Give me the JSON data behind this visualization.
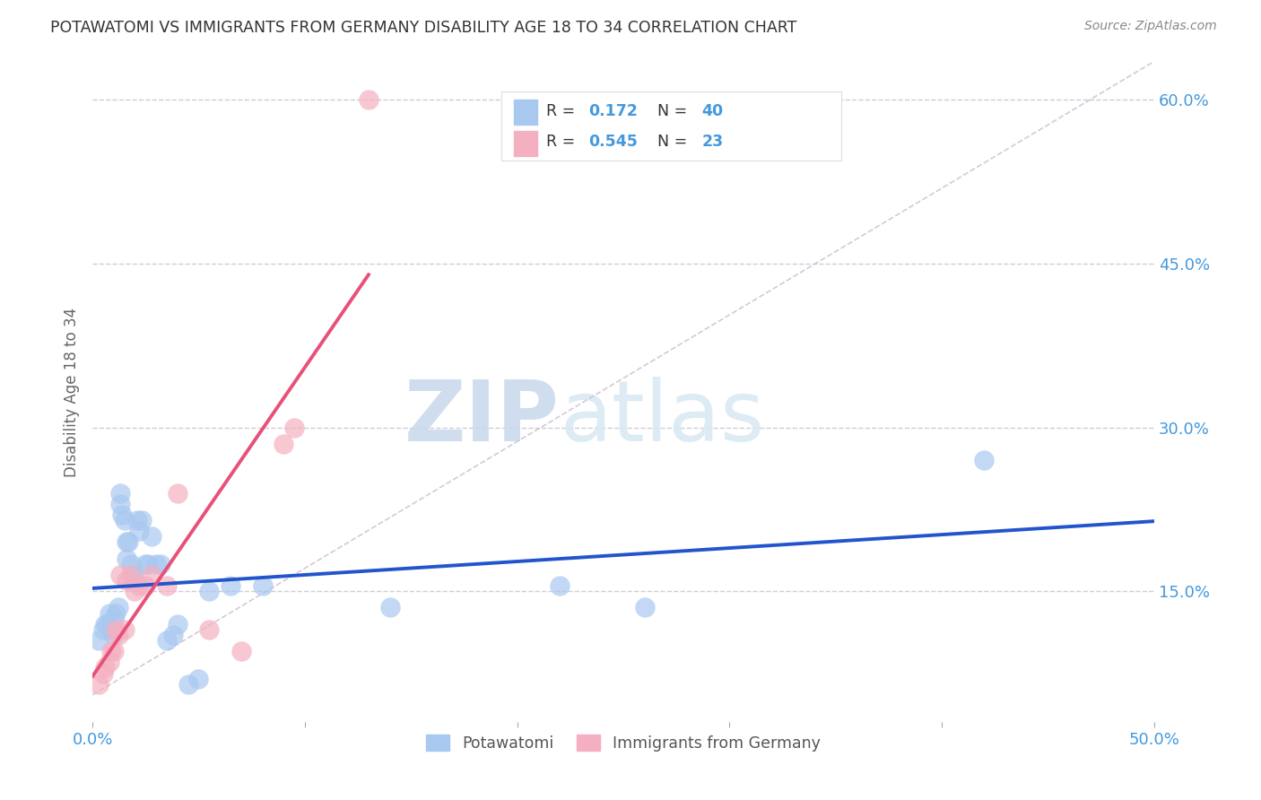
{
  "title": "POTAWATOMI VS IMMIGRANTS FROM GERMANY DISABILITY AGE 18 TO 34 CORRELATION CHART",
  "source": "Source: ZipAtlas.com",
  "ylabel": "Disability Age 18 to 34",
  "xlim": [
    0.0,
    0.5
  ],
  "ylim": [
    0.03,
    0.635
  ],
  "yticks_right": [
    0.15,
    0.3,
    0.45,
    0.6
  ],
  "yticklabels_right": [
    "15.0%",
    "30.0%",
    "45.0%",
    "60.0%"
  ],
  "legend_label1": "Potawatomi",
  "legend_label2": "Immigrants from Germany",
  "watermark_zip": "ZIP",
  "watermark_atlas": "atlas",
  "color_blue": "#A8C8F0",
  "color_pink": "#F4B0C0",
  "color_line_blue": "#2255CC",
  "color_line_pink": "#E8507A",
  "color_axis_label": "#4499DD",
  "color_title": "#333333",
  "color_source": "#888888",
  "color_grid": "#CCCCDD",
  "color_diag": "#CCBBCC",
  "potawatomi_x": [
    0.003,
    0.005,
    0.006,
    0.007,
    0.008,
    0.009,
    0.01,
    0.01,
    0.011,
    0.012,
    0.013,
    0.013,
    0.014,
    0.015,
    0.016,
    0.016,
    0.017,
    0.018,
    0.019,
    0.02,
    0.021,
    0.022,
    0.023,
    0.025,
    0.026,
    0.028,
    0.03,
    0.032,
    0.035,
    0.038,
    0.04,
    0.045,
    0.05,
    0.055,
    0.065,
    0.08,
    0.14,
    0.22,
    0.26,
    0.42
  ],
  "potawatomi_y": [
    0.105,
    0.115,
    0.12,
    0.12,
    0.13,
    0.115,
    0.125,
    0.11,
    0.13,
    0.135,
    0.23,
    0.24,
    0.22,
    0.215,
    0.195,
    0.18,
    0.195,
    0.175,
    0.165,
    0.16,
    0.215,
    0.205,
    0.215,
    0.175,
    0.175,
    0.2,
    0.175,
    0.175,
    0.105,
    0.11,
    0.12,
    0.065,
    0.07,
    0.15,
    0.155,
    0.155,
    0.135,
    0.155,
    0.135,
    0.27
  ],
  "germany_x": [
    0.003,
    0.005,
    0.006,
    0.008,
    0.009,
    0.01,
    0.011,
    0.012,
    0.013,
    0.015,
    0.016,
    0.018,
    0.02,
    0.022,
    0.025,
    0.028,
    0.035,
    0.04,
    0.055,
    0.07,
    0.09,
    0.095,
    0.13
  ],
  "germany_y": [
    0.065,
    0.075,
    0.08,
    0.085,
    0.095,
    0.095,
    0.115,
    0.11,
    0.165,
    0.115,
    0.16,
    0.165,
    0.15,
    0.155,
    0.155,
    0.165,
    0.155,
    0.24,
    0.115,
    0.095,
    0.285,
    0.3,
    0.6
  ],
  "background_color": "#FFFFFF"
}
